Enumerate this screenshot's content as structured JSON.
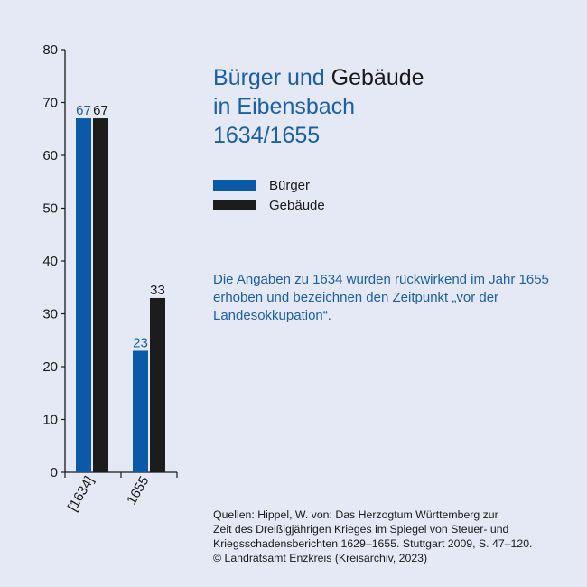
{
  "title": {
    "line1_blue": "Bürger und",
    "line1_dark": "Gebäude",
    "line2": "in Eibensbach",
    "line3": "1634/1655"
  },
  "legend": [
    {
      "label": "Bürger",
      "color": "#0b5aa8"
    },
    {
      "label": "Gebäude",
      "color": "#1c1c1c"
    }
  ],
  "note": "Die Angaben zu 1634 wurden rückwirkend im Jahr 1655 erhoben und bezeichnen den Zeitpunkt „vor der Landesokkupation“.",
  "source": {
    "line1": "Quellen: Hippel, W. von: Das Herzogtum Württemberg zur",
    "line2": "Zeit des Dreißigjährigen Krieges im Spiegel von Steuer- und",
    "line3": "Kriegsschadensberichten 1629–1655. Stuttgart 2009, S. 47–120.",
    "line4": "© Landratsamt Enzkreis (Kreisarchiv, 2023)"
  },
  "chart_data": {
    "type": "bar",
    "categories": [
      "[1634]",
      "1655"
    ],
    "series": [
      {
        "name": "Bürger",
        "values": [
          67,
          23
        ],
        "color": "#0b5aa8",
        "label_color": "#1b5fa8"
      },
      {
        "name": "Gebäude",
        "values": [
          67,
          33
        ],
        "color": "#1c1c1c",
        "label_color": "#1a1a1a"
      }
    ],
    "ylim": [
      0,
      80
    ],
    "yticks": [
      0,
      10,
      20,
      30,
      40,
      50,
      60,
      70,
      80
    ],
    "grid": false,
    "legend_position": "right"
  }
}
